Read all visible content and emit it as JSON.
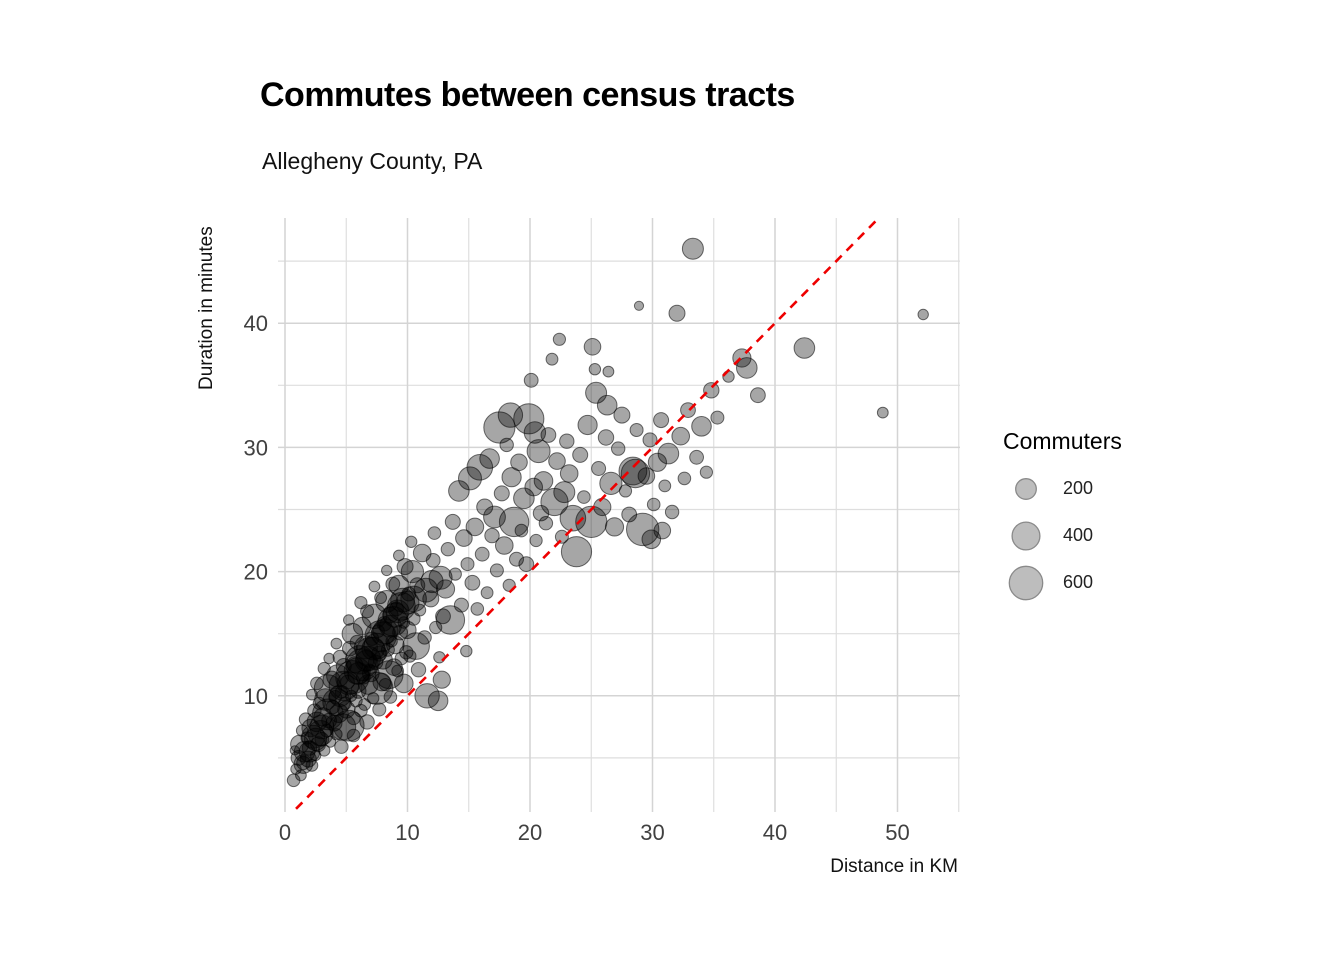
{
  "chart_data": {
    "type": "scatter",
    "title": "Commutes between census tracts",
    "subtitle": "Allegheny County, PA",
    "xlabel": "Distance in KM",
    "ylabel": "Duration in minutes",
    "xlim": [
      -0.6,
      54.9
    ],
    "ylim": [
      0.6,
      48.5
    ],
    "x_ticks_major": [
      0,
      10,
      20,
      30,
      40,
      50
    ],
    "x_ticks_minor": [
      5,
      15,
      25,
      35,
      45,
      55
    ],
    "y_ticks_major": [
      10,
      20,
      30,
      40
    ],
    "y_ticks_minor": [
      5,
      15,
      25,
      35,
      45
    ],
    "grid": "major+minor, light gray, white panel, no axis lines",
    "legend_position": "right",
    "reference_line": {
      "meaning": "identity y = x",
      "style": "dashed",
      "color": "#EE0000",
      "x_start": 0.9,
      "x_end": 48.3
    },
    "points_format": [
      "distance_km",
      "duration_min",
      "commuters"
    ],
    "points": [
      [
        0.7,
        3.2,
        60
      ],
      [
        0.9,
        4.1,
        35
      ],
      [
        1.1,
        5.0,
        90
      ],
      [
        1.3,
        3.6,
        40
      ],
      [
        1.2,
        6.1,
        150
      ],
      [
        1.5,
        4.6,
        70
      ],
      [
        1.4,
        7.2,
        45
      ],
      [
        1.6,
        5.5,
        200
      ],
      [
        1.8,
        6.6,
        55
      ],
      [
        1.9,
        4.9,
        110
      ],
      [
        0.8,
        5.6,
        25
      ],
      [
        1.7,
        8.1,
        65
      ],
      [
        2.0,
        5.8,
        85
      ],
      [
        2.1,
        7.4,
        140
      ],
      [
        2.2,
        4.4,
        50
      ],
      [
        2.3,
        6.7,
        260
      ],
      [
        2.4,
        8.8,
        70
      ],
      [
        2.5,
        5.2,
        35
      ],
      [
        2.6,
        7.9,
        180
      ],
      [
        2.7,
        6.1,
        95
      ],
      [
        2.8,
        9.4,
        55
      ],
      [
        2.9,
        7.0,
        320
      ],
      [
        2.2,
        10.1,
        40
      ],
      [
        2.6,
        11.0,
        60
      ],
      [
        3.0,
        6.5,
        75
      ],
      [
        3.1,
        8.3,
        150
      ],
      [
        3.2,
        5.6,
        45
      ],
      [
        3.3,
        9.7,
        220
      ],
      [
        3.4,
        7.2,
        60
      ],
      [
        3.5,
        10.6,
        380
      ],
      [
        3.6,
        8.0,
        90
      ],
      [
        3.7,
        6.3,
        40
      ],
      [
        3.8,
        11.3,
        130
      ],
      [
        3.9,
        9.1,
        70
      ],
      [
        3.2,
        12.2,
        55
      ],
      [
        3.6,
        13.0,
        35
      ],
      [
        4.0,
        7.8,
        110
      ],
      [
        4.1,
        9.9,
        65
      ],
      [
        4.2,
        6.9,
        45
      ],
      [
        4.3,
        11.6,
        240
      ],
      [
        4.4,
        8.6,
        160
      ],
      [
        4.5,
        13.1,
        80
      ],
      [
        4.6,
        10.3,
        55
      ],
      [
        4.7,
        7.5,
        350
      ],
      [
        4.8,
        12.4,
        95
      ],
      [
        4.9,
        9.4,
        60
      ],
      [
        4.2,
        14.2,
        40
      ],
      [
        4.6,
        5.9,
        70
      ],
      [
        5.0,
        8.9,
        130
      ],
      [
        5.1,
        11.1,
        75
      ],
      [
        5.2,
        7.6,
        500
      ],
      [
        5.3,
        13.8,
        90
      ],
      [
        5.4,
        10.0,
        45
      ],
      [
        5.5,
        15.0,
        200
      ],
      [
        5.6,
        8.2,
        65
      ],
      [
        5.7,
        12.5,
        110
      ],
      [
        5.8,
        9.6,
        55
      ],
      [
        5.9,
        14.3,
        85
      ],
      [
        5.2,
        16.1,
        35
      ],
      [
        5.6,
        6.8,
        60
      ],
      [
        6.0,
        10.4,
        95
      ],
      [
        6.1,
        12.9,
        420
      ],
      [
        6.2,
        8.8,
        60
      ],
      [
        6.3,
        15.6,
        140
      ],
      [
        6.4,
        11.5,
        75
      ],
      [
        6.5,
        9.3,
        50
      ],
      [
        6.6,
        13.9,
        260
      ],
      [
        6.7,
        16.8,
        65
      ],
      [
        6.8,
        10.9,
        180
      ],
      [
        6.9,
        12.1,
        45
      ],
      [
        6.2,
        17.5,
        55
      ],
      [
        6.7,
        7.9,
        85
      ],
      [
        7.0,
        11.8,
        120
      ],
      [
        7.1,
        14.6,
        70
      ],
      [
        7.2,
        9.8,
        45
      ],
      [
        7.3,
        16.4,
        300
      ],
      [
        7.4,
        12.7,
        85
      ],
      [
        7.5,
        10.6,
        550
      ],
      [
        7.6,
        15.2,
        60
      ],
      [
        7.7,
        13.4,
        95
      ],
      [
        7.8,
        17.9,
        50
      ],
      [
        7.9,
        11.1,
        140
      ],
      [
        7.3,
        18.8,
        40
      ],
      [
        7.7,
        8.9,
        65
      ],
      [
        8.0,
        12.9,
        160
      ],
      [
        8.1,
        15.8,
        85
      ],
      [
        8.2,
        10.9,
        55
      ],
      [
        8.3,
        17.6,
        230
      ],
      [
        8.4,
        13.7,
        65
      ],
      [
        8.5,
        11.7,
        400
      ],
      [
        8.6,
        16.5,
        100
      ],
      [
        8.7,
        14.4,
        45
      ],
      [
        8.8,
        19.0,
        75
      ],
      [
        8.9,
        12.3,
        120
      ],
      [
        8.3,
        20.1,
        35
      ],
      [
        8.6,
        9.9,
        60
      ],
      [
        9.0,
        14.1,
        140
      ],
      [
        9.1,
        17.0,
        75
      ],
      [
        9.2,
        12.0,
        50
      ],
      [
        9.3,
        18.9,
        190
      ],
      [
        9.4,
        15.1,
        90
      ],
      [
        9.5,
        13.0,
        60
      ],
      [
        9.6,
        17.7,
        280
      ],
      [
        9.7,
        15.9,
        45
      ],
      [
        9.8,
        20.4,
        110
      ],
      [
        9.9,
        13.5,
        70
      ],
      [
        9.3,
        21.3,
        40
      ],
      [
        9.7,
        11.0,
        160
      ],
      [
        10.0,
        15.3,
        130
      ],
      [
        10.1,
        18.2,
        80
      ],
      [
        10.2,
        13.2,
        55
      ],
      [
        10.4,
        20.0,
        240
      ],
      [
        10.5,
        16.2,
        65
      ],
      [
        10.7,
        14.0,
        360
      ],
      [
        10.8,
        18.9,
        95
      ],
      [
        11.0,
        16.9,
        50
      ],
      [
        11.2,
        21.5,
        140
      ],
      [
        11.4,
        14.7,
        70
      ],
      [
        10.3,
        22.4,
        45
      ],
      [
        10.9,
        12.1,
        85
      ],
      [
        11.6,
        10.0,
        300
      ],
      [
        11.9,
        17.8,
        110
      ],
      [
        12.1,
        20.9,
        75
      ],
      [
        12.3,
        15.5,
        55
      ],
      [
        12.5,
        9.6,
        180
      ],
      [
        12.7,
        19.5,
        260
      ],
      [
        12.9,
        16.4,
        90
      ],
      [
        12.2,
        23.1,
        60
      ],
      [
        12.6,
        13.1,
        45
      ],
      [
        12.8,
        11.3,
        130
      ],
      [
        13.1,
        18.6,
        150
      ],
      [
        13.3,
        21.8,
        70
      ],
      [
        13.5,
        16.1,
        420
      ],
      [
        13.7,
        24.0,
        95
      ],
      [
        13.9,
        19.8,
        55
      ],
      [
        14.2,
        26.5,
        200
      ],
      [
        14.4,
        17.3,
        80
      ],
      [
        14.6,
        22.7,
        120
      ],
      [
        14.8,
        13.6,
        45
      ],
      [
        14.9,
        20.6,
        65
      ],
      [
        15.1,
        27.5,
        260
      ],
      [
        15.3,
        19.1,
        90
      ],
      [
        15.5,
        23.6,
        140
      ],
      [
        15.7,
        17.0,
        60
      ],
      [
        15.9,
        28.4,
        330
      ],
      [
        16.1,
        21.4,
        75
      ],
      [
        16.3,
        25.2,
        110
      ],
      [
        16.5,
        18.3,
        50
      ],
      [
        16.7,
        29.1,
        180
      ],
      [
        16.9,
        22.9,
        85
      ],
      [
        17.1,
        24.4,
        230
      ],
      [
        17.3,
        20.1,
        65
      ],
      [
        17.5,
        31.6,
        520
      ],
      [
        17.7,
        26.3,
        95
      ],
      [
        17.9,
        22.1,
        140
      ],
      [
        18.1,
        30.2,
        70
      ],
      [
        18.3,
        18.9,
        55
      ],
      [
        18.5,
        27.6,
        170
      ],
      [
        18.7,
        24.0,
        450
      ],
      [
        18.9,
        21.0,
        80
      ],
      [
        18.4,
        32.6,
        300
      ],
      [
        19.1,
        28.8,
        120
      ],
      [
        19.3,
        23.3,
        60
      ],
      [
        19.5,
        25.9,
        200
      ],
      [
        19.7,
        20.6,
        90
      ],
      [
        19.9,
        32.3,
        480
      ],
      [
        20.1,
        35.4,
        75
      ],
      [
        20.3,
        26.8,
        140
      ],
      [
        20.5,
        22.5,
        55
      ],
      [
        20.7,
        29.7,
        260
      ],
      [
        20.9,
        24.7,
        100
      ],
      [
        20.4,
        31.2,
        220
      ],
      [
        21.1,
        27.3,
        160
      ],
      [
        21.3,
        23.9,
        70
      ],
      [
        21.5,
        31.0,
        90
      ],
      [
        21.8,
        37.1,
        50
      ],
      [
        22.0,
        25.6,
        380
      ],
      [
        22.2,
        28.9,
        120
      ],
      [
        22.4,
        38.7,
        55
      ],
      [
        22.6,
        22.8,
        65
      ],
      [
        22.8,
        26.4,
        210
      ],
      [
        23.0,
        30.5,
        85
      ],
      [
        23.2,
        27.9,
        140
      ],
      [
        23.5,
        24.3,
        330
      ],
      [
        23.8,
        21.6,
        480
      ],
      [
        24.1,
        29.4,
        95
      ],
      [
        24.4,
        26.0,
        60
      ],
      [
        24.7,
        31.8,
        170
      ],
      [
        25.0,
        24.0,
        520
      ],
      [
        25.1,
        38.1,
        120
      ],
      [
        25.3,
        36.3,
        45
      ],
      [
        25.4,
        34.4,
        210
      ],
      [
        25.6,
        28.3,
        80
      ],
      [
        25.9,
        25.2,
        130
      ],
      [
        26.2,
        30.8,
        100
      ],
      [
        26.3,
        33.4,
        180
      ],
      [
        26.4,
        36.1,
        40
      ],
      [
        26.6,
        27.1,
        240
      ],
      [
        26.9,
        23.6,
        150
      ],
      [
        27.2,
        29.9,
        70
      ],
      [
        27.5,
        32.6,
        110
      ],
      [
        27.8,
        26.5,
        55
      ],
      [
        28.1,
        24.6,
        90
      ],
      [
        28.4,
        28.1,
        400
      ],
      [
        28.7,
        31.4,
        65
      ],
      [
        28.9,
        41.4,
        25
      ],
      [
        28.6,
        27.9,
        420
      ],
      [
        29.2,
        23.4,
        560
      ],
      [
        29.5,
        27.7,
        120
      ],
      [
        29.8,
        30.6,
        80
      ],
      [
        30.1,
        25.4,
        60
      ],
      [
        30.4,
        28.8,
        150
      ],
      [
        30.7,
        32.2,
        95
      ],
      [
        31.0,
        26.9,
        50
      ],
      [
        31.3,
        29.5,
        200
      ],
      [
        31.6,
        24.8,
        70
      ],
      [
        29.9,
        22.6,
        160
      ],
      [
        30.8,
        23.3,
        120
      ],
      [
        32.0,
        40.8,
        110
      ],
      [
        32.3,
        30.9,
        140
      ],
      [
        32.6,
        27.5,
        60
      ],
      [
        32.9,
        33.0,
        90
      ],
      [
        33.3,
        46.0,
        210
      ],
      [
        33.6,
        29.2,
        75
      ],
      [
        34.0,
        31.7,
        180
      ],
      [
        34.4,
        28.0,
        55
      ],
      [
        34.8,
        34.6,
        100
      ],
      [
        35.3,
        32.4,
        65
      ],
      [
        36.2,
        35.7,
        45
      ],
      [
        37.3,
        37.2,
        150
      ],
      [
        37.7,
        36.4,
        200
      ],
      [
        38.6,
        34.2,
        90
      ],
      [
        42.4,
        38.0,
        200
      ],
      [
        48.8,
        32.8,
        40
      ],
      [
        52.1,
        40.7,
        35
      ],
      [
        3.5,
        8.5,
        500
      ],
      [
        4.8,
        10.8,
        450
      ],
      [
        5.5,
        11.5,
        600
      ],
      [
        6.3,
        12.5,
        550
      ],
      [
        7.0,
        13.5,
        480
      ],
      [
        7.8,
        14.8,
        520
      ],
      [
        8.8,
        16.0,
        460
      ],
      [
        9.5,
        17.2,
        400
      ],
      [
        4.2,
        9.5,
        380
      ],
      [
        5.9,
        12.0,
        350
      ],
      [
        6.8,
        13.0,
        300
      ],
      [
        7.5,
        14.0,
        340
      ],
      [
        8.2,
        15.2,
        310
      ],
      [
        9.0,
        16.5,
        290
      ],
      [
        10.5,
        17.8,
        330
      ],
      [
        3.0,
        7.5,
        280
      ],
      [
        2.5,
        6.5,
        240
      ],
      [
        2.0,
        5.5,
        200
      ],
      [
        1.5,
        4.5,
        160
      ],
      [
        11.5,
        18.5,
        280
      ],
      [
        12.0,
        19.2,
        240
      ],
      [
        4.5,
        10.0,
        220
      ],
      [
        5.2,
        11.0,
        260
      ],
      [
        6.0,
        11.8,
        230
      ],
      [
        6.6,
        12.8,
        210
      ],
      [
        7.2,
        13.8,
        250
      ],
      [
        8.0,
        15.0,
        270
      ],
      [
        8.6,
        15.6,
        230
      ],
      [
        9.2,
        16.8,
        250
      ],
      [
        10.0,
        17.5,
        260
      ]
    ]
  },
  "legend": {
    "title": "Commuters",
    "entries": [
      {
        "label": "200",
        "value": 200
      },
      {
        "label": "400",
        "value": 400
      },
      {
        "label": "600",
        "value": 600
      }
    ]
  },
  "colors": {
    "reference_line": "#EE0000",
    "grid_major": "#d4d4d4",
    "grid_minor": "#dedede",
    "point_fill": "rgba(0,0,0,0.35)",
    "point_stroke": "rgba(0,0,0,0.55)",
    "tick_text": "#404040",
    "legend_circle_fill": "#bdbdbd",
    "legend_circle_stroke": "#8a8a8a"
  }
}
